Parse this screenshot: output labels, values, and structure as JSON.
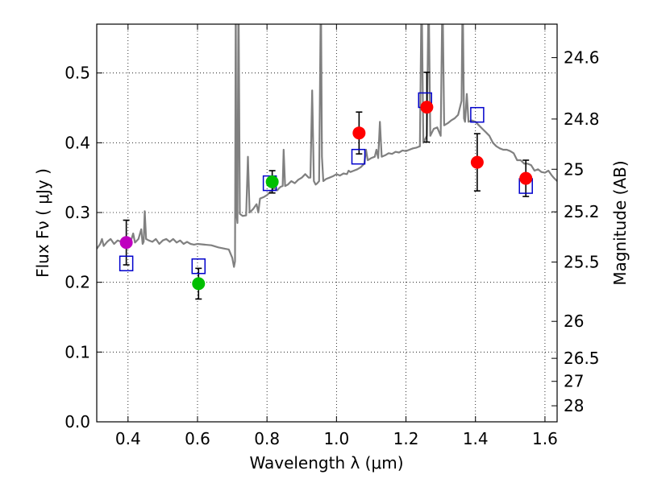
{
  "chart_data": {
    "type": "scatter",
    "xlabel": "Wavelength  λ (μm)",
    "ylabel": "Flux  Fν  ( μJy )",
    "y2label": "Magnitude (AB)",
    "xlim": [
      0.31,
      1.635
    ],
    "ylim": [
      0.0,
      0.57
    ],
    "grid": true,
    "x_ticks": [
      0.4,
      0.6,
      0.8,
      1.0,
      1.2,
      1.4,
      1.6
    ],
    "x_tick_labels": [
      "0.4",
      "0.6",
      "0.8",
      "1.0",
      "1.2",
      "1.4",
      "1.6"
    ],
    "y_ticks": [
      0.0,
      0.1,
      0.2,
      0.3,
      0.4,
      0.5
    ],
    "y_tick_labels": [
      "0.0",
      "0.1",
      "0.2",
      "0.3",
      "0.4",
      "0.5"
    ],
    "right_ticks": [
      {
        "flux": 0.522,
        "label": "24.6"
      },
      {
        "flux": 0.434,
        "label": "24.8"
      },
      {
        "flux": 0.362,
        "label": "25"
      },
      {
        "flux": 0.301,
        "label": "25.2"
      },
      {
        "flux": 0.229,
        "label": "25.5"
      },
      {
        "flux": 0.144,
        "label": "26"
      },
      {
        "flux": 0.091,
        "label": "26.5"
      },
      {
        "flux": 0.058,
        "label": "27"
      },
      {
        "flux": 0.023,
        "label": "28"
      }
    ],
    "observed": [
      {
        "x": 0.395,
        "y": 0.257,
        "err": 0.032,
        "color": "#bf00bf"
      },
      {
        "x": 0.603,
        "y": 0.198,
        "err": 0.022,
        "color": "#00bf00"
      },
      {
        "x": 0.815,
        "y": 0.344,
        "err": 0.016,
        "color": "#00bf00"
      },
      {
        "x": 1.065,
        "y": 0.414,
        "err": 0.03,
        "color": "#ff0000"
      },
      {
        "x": 1.26,
        "y": 0.451,
        "err": 0.05,
        "color": "#ff0000"
      },
      {
        "x": 1.405,
        "y": 0.372,
        "err": 0.041,
        "color": "#ff0000"
      },
      {
        "x": 1.545,
        "y": 0.349,
        "err": 0.026,
        "color": "#ff0000"
      }
    ],
    "model_boxes": [
      {
        "x": 0.395,
        "y": 0.227
      },
      {
        "x": 0.603,
        "y": 0.223
      },
      {
        "x": 0.808,
        "y": 0.342
      },
      {
        "x": 1.063,
        "y": 0.38
      },
      {
        "x": 1.255,
        "y": 0.461
      },
      {
        "x": 1.405,
        "y": 0.44
      },
      {
        "x": 1.545,
        "y": 0.338
      }
    ],
    "spectrum": [
      [
        0.31,
        0.248
      ],
      [
        0.32,
        0.255
      ],
      [
        0.325,
        0.262
      ],
      [
        0.33,
        0.252
      ],
      [
        0.34,
        0.258
      ],
      [
        0.35,
        0.262
      ],
      [
        0.36,
        0.255
      ],
      [
        0.37,
        0.26
      ],
      [
        0.38,
        0.258
      ],
      [
        0.39,
        0.262
      ],
      [
        0.4,
        0.258
      ],
      [
        0.41,
        0.262
      ],
      [
        0.415,
        0.27
      ],
      [
        0.42,
        0.257
      ],
      [
        0.43,
        0.262
      ],
      [
        0.438,
        0.276
      ],
      [
        0.442,
        0.255
      ],
      [
        0.445,
        0.258
      ],
      [
        0.448,
        0.302
      ],
      [
        0.452,
        0.262
      ],
      [
        0.46,
        0.26
      ],
      [
        0.47,
        0.258
      ],
      [
        0.48,
        0.262
      ],
      [
        0.49,
        0.255
      ],
      [
        0.5,
        0.26
      ],
      [
        0.51,
        0.262
      ],
      [
        0.52,
        0.258
      ],
      [
        0.53,
        0.262
      ],
      [
        0.54,
        0.257
      ],
      [
        0.55,
        0.26
      ],
      [
        0.56,
        0.255
      ],
      [
        0.57,
        0.258
      ],
      [
        0.58,
        0.255
      ],
      [
        0.59,
        0.254
      ],
      [
        0.6,
        0.255
      ],
      [
        0.62,
        0.254
      ],
      [
        0.64,
        0.253
      ],
      [
        0.66,
        0.25
      ],
      [
        0.68,
        0.248
      ],
      [
        0.69,
        0.247
      ],
      [
        0.7,
        0.235
      ],
      [
        0.705,
        0.222
      ],
      [
        0.708,
        0.23
      ],
      [
        0.71,
        0.62
      ],
      [
        0.712,
        0.3
      ],
      [
        0.715,
        0.285
      ],
      [
        0.718,
        0.62
      ],
      [
        0.722,
        0.298
      ],
      [
        0.73,
        0.295
      ],
      [
        0.74,
        0.296
      ],
      [
        0.745,
        0.38
      ],
      [
        0.75,
        0.3
      ],
      [
        0.76,
        0.305
      ],
      [
        0.77,
        0.312
      ],
      [
        0.775,
        0.3
      ],
      [
        0.78,
        0.32
      ],
      [
        0.79,
        0.322
      ],
      [
        0.8,
        0.325
      ],
      [
        0.81,
        0.33
      ],
      [
        0.82,
        0.335
      ],
      [
        0.83,
        0.332
      ],
      [
        0.835,
        0.335
      ],
      [
        0.84,
        0.337
      ],
      [
        0.845,
        0.338
      ],
      [
        0.848,
        0.39
      ],
      [
        0.852,
        0.338
      ],
      [
        0.86,
        0.34
      ],
      [
        0.87,
        0.345
      ],
      [
        0.88,
        0.342
      ],
      [
        0.89,
        0.347
      ],
      [
        0.9,
        0.35
      ],
      [
        0.91,
        0.355
      ],
      [
        0.92,
        0.35
      ],
      [
        0.925,
        0.35
      ],
      [
        0.93,
        0.475
      ],
      [
        0.935,
        0.345
      ],
      [
        0.94,
        0.34
      ],
      [
        0.945,
        0.342
      ],
      [
        0.95,
        0.345
      ],
      [
        0.955,
        0.62
      ],
      [
        0.958,
        0.38
      ],
      [
        0.962,
        0.345
      ],
      [
        0.97,
        0.348
      ],
      [
        0.98,
        0.35
      ],
      [
        0.99,
        0.352
      ],
      [
        1.0,
        0.355
      ],
      [
        1.01,
        0.353
      ],
      [
        1.02,
        0.356
      ],
      [
        1.03,
        0.355
      ],
      [
        1.035,
        0.36
      ],
      [
        1.04,
        0.358
      ],
      [
        1.05,
        0.36
      ],
      [
        1.06,
        0.362
      ],
      [
        1.07,
        0.365
      ],
      [
        1.08,
        0.37
      ],
      [
        1.085,
        0.39
      ],
      [
        1.09,
        0.375
      ],
      [
        1.1,
        0.378
      ],
      [
        1.11,
        0.38
      ],
      [
        1.115,
        0.39
      ],
      [
        1.12,
        0.378
      ],
      [
        1.125,
        0.43
      ],
      [
        1.13,
        0.38
      ],
      [
        1.14,
        0.382
      ],
      [
        1.15,
        0.385
      ],
      [
        1.16,
        0.384
      ],
      [
        1.17,
        0.387
      ],
      [
        1.18,
        0.386
      ],
      [
        1.19,
        0.389
      ],
      [
        1.2,
        0.388
      ],
      [
        1.21,
        0.39
      ],
      [
        1.22,
        0.392
      ],
      [
        1.23,
        0.393
      ],
      [
        1.24,
        0.395
      ],
      [
        1.245,
        0.62
      ],
      [
        1.25,
        0.4
      ],
      [
        1.26,
        0.41
      ],
      [
        1.265,
        0.62
      ],
      [
        1.27,
        0.41
      ],
      [
        1.275,
        0.415
      ],
      [
        1.28,
        0.42
      ],
      [
        1.29,
        0.422
      ],
      [
        1.3,
        0.41
      ],
      [
        1.305,
        0.62
      ],
      [
        1.31,
        0.425
      ],
      [
        1.32,
        0.428
      ],
      [
        1.33,
        0.432
      ],
      [
        1.34,
        0.435
      ],
      [
        1.35,
        0.44
      ],
      [
        1.36,
        0.46
      ],
      [
        1.363,
        0.62
      ],
      [
        1.367,
        0.435
      ],
      [
        1.37,
        0.43
      ],
      [
        1.375,
        0.47
      ],
      [
        1.38,
        0.43
      ],
      [
        1.39,
        0.432
      ],
      [
        1.4,
        0.43
      ],
      [
        1.41,
        0.425
      ],
      [
        1.42,
        0.42
      ],
      [
        1.43,
        0.415
      ],
      [
        1.44,
        0.41
      ],
      [
        1.45,
        0.4
      ],
      [
        1.46,
        0.395
      ],
      [
        1.47,
        0.392
      ],
      [
        1.48,
        0.39
      ],
      [
        1.49,
        0.39
      ],
      [
        1.5,
        0.388
      ],
      [
        1.51,
        0.385
      ],
      [
        1.52,
        0.375
      ],
      [
        1.53,
        0.375
      ],
      [
        1.54,
        0.37
      ],
      [
        1.55,
        0.37
      ],
      [
        1.56,
        0.368
      ],
      [
        1.57,
        0.36
      ],
      [
        1.58,
        0.362
      ],
      [
        1.59,
        0.358
      ],
      [
        1.6,
        0.357
      ],
      [
        1.61,
        0.36
      ],
      [
        1.62,
        0.353
      ],
      [
        1.625,
        0.35
      ],
      [
        1.635,
        0.345
      ]
    ],
    "colors": {
      "spectrum": "#808080",
      "box": "#0000cc",
      "errorbar": "#000000",
      "grid": "#000000",
      "axis": "#000000"
    }
  }
}
